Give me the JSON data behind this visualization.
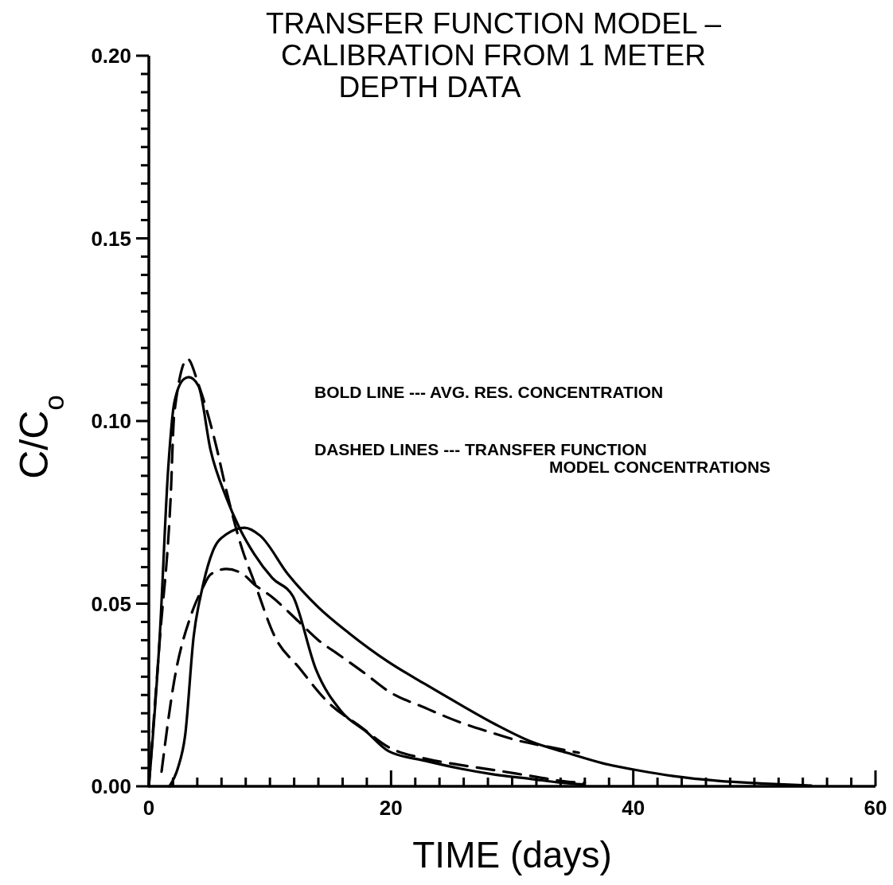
{
  "chart_data": {
    "type": "line",
    "title": "TRANSFER FUNCTION MODEL –\nCALIBRATION FROM 1 METER\nDEPTH DATA",
    "xlabel": "TIME  (days)",
    "ylabel": "C/C$_{o}$",
    "annotations": [
      "BOLD LINE --- AVG. RES. CONCENTRATION",
      "DASHED LINES --- TRANSFER FUNCTION\nMODEL CONCENTRATIONS"
    ],
    "xlim": [
      0,
      60
    ],
    "ylim": [
      0,
      0.2
    ],
    "xticks": [
      0,
      {
        "value": 2,
        "label": null
      },
      {
        "value": 4,
        "label": null
      },
      {
        "value": 6,
        "label": null
      },
      {
        "value": 8,
        "label": null
      },
      {
        "value": 10,
        "label": null
      },
      {
        "value": 12,
        "label": null
      },
      {
        "value": 14,
        "label": null
      },
      {
        "value": 16,
        "label": null
      },
      {
        "value": 18,
        "label": null
      },
      20,
      {
        "value": 22,
        "label": null
      },
      {
        "value": 24,
        "label": null
      },
      {
        "value": 26,
        "label": null
      },
      {
        "value": 28,
        "label": null
      },
      {
        "value": 30,
        "label": null
      },
      {
        "value": 32,
        "label": null
      },
      {
        "value": 34,
        "label": null
      },
      {
        "value": 36,
        "label": null
      },
      {
        "value": 38,
        "label": null
      },
      40,
      {
        "value": 42,
        "label": null
      },
      {
        "value": 44,
        "label": null
      },
      {
        "value": 46,
        "label": null
      },
      {
        "value": 48,
        "label": null
      },
      {
        "value": 50,
        "label": null
      },
      {
        "value": 52,
        "label": null
      },
      {
        "value": 54,
        "label": null
      },
      {
        "value": 56,
        "label": null
      },
      {
        "value": 58,
        "label": null
      },
      60
    ],
    "yticks": [
      {
        "value": 0,
        "label": "0.00"
      },
      {
        "value": 0.005,
        "label": null
      },
      {
        "value": 0.01,
        "label": null
      },
      {
        "value": 0.015,
        "label": null
      },
      {
        "value": 0.02,
        "label": null
      },
      {
        "value": 0.025,
        "label": null
      },
      {
        "value": 0.03,
        "label": null
      },
      {
        "value": 0.035,
        "label": null
      },
      {
        "value": 0.04,
        "label": null
      },
      {
        "value": 0.045,
        "label": null
      },
      {
        "value": 0.05,
        "label": "0.05"
      },
      {
        "value": 0.055,
        "label": null
      },
      {
        "value": 0.06,
        "label": null
      },
      {
        "value": 0.065,
        "label": null
      },
      {
        "value": 0.07,
        "label": null
      },
      {
        "value": 0.075,
        "label": null
      },
      {
        "value": 0.08,
        "label": null
      },
      {
        "value": 0.085,
        "label": null
      },
      {
        "value": 0.09,
        "label": null
      },
      {
        "value": 0.095,
        "label": null
      },
      {
        "value": 0.1,
        "label": "0.10"
      },
      {
        "value": 0.105,
        "label": null
      },
      {
        "value": 0.11,
        "label": null
      },
      {
        "value": 0.115,
        "label": null
      },
      {
        "value": 0.12,
        "label": null
      },
      {
        "value": 0.125,
        "label": null
      },
      {
        "value": 0.13,
        "label": null
      },
      {
        "value": 0.135,
        "label": null
      },
      {
        "value": 0.14,
        "label": null
      },
      {
        "value": 0.145,
        "label": null
      },
      {
        "value": 0.15,
        "label": "0.15"
      },
      {
        "value": 0.155,
        "label": null
      },
      {
        "value": 0.16,
        "label": null
      },
      {
        "value": 0.165,
        "label": null
      },
      {
        "value": 0.17,
        "label": null
      },
      {
        "value": 0.175,
        "label": null
      },
      {
        "value": 0.18,
        "label": null
      },
      {
        "value": 0.185,
        "label": null
      },
      {
        "value": 0.19,
        "label": null
      },
      {
        "value": 0.195,
        "label": null
      },
      {
        "value": 0.2,
        "label": "0.20"
      }
    ],
    "grid": false,
    "marker": "none",
    "series": [
      {
        "color": "#000000",
        "line_style": "solid",
        "x": [
          0,
          0.9,
          1.6,
          2.1,
          2.9,
          3.3,
          4.1,
          5.1,
          6.4,
          7.5,
          8.7,
          10.2,
          11.9,
          13.8,
          15.9,
          18,
          19.8,
          22.8,
          25.8,
          28.6,
          31.6,
          34,
          35.9
        ],
        "values": [
          0,
          0.041,
          0.087,
          0.105,
          0.1115,
          0.112,
          0.1096,
          0.092,
          0.079,
          0.0706,
          0.0636,
          0.057,
          0.052,
          0.032,
          0.0205,
          0.0148,
          0.0096,
          0.007,
          0.0048,
          0.0032,
          0.002,
          0.001,
          0.0005
        ]
      },
      {
        "color": "#000000",
        "line_style": "solid",
        "x": [
          1.7,
          2.4,
          3.0,
          3.7,
          4.4,
          5.3,
          6.4,
          7.9,
          9.2,
          11.5,
          14,
          16.5,
          19.8,
          22.8,
          25.8,
          28.6,
          31.6,
          34.5,
          37.5,
          40.5,
          43.3,
          47,
          50.5,
          54.7
        ],
        "values": [
          0,
          0.005,
          0.014,
          0.041,
          0.054,
          0.0645,
          0.069,
          0.0708,
          0.0686,
          0.058,
          0.049,
          0.042,
          0.034,
          0.028,
          0.0222,
          0.017,
          0.0122,
          0.0092,
          0.0063,
          0.0043,
          0.0028,
          0.0015,
          0.0008,
          0.0002
        ]
      },
      {
        "color": "#000000",
        "line_style": "dashed",
        "x": [
          0,
          0.9,
          1.8,
          2.1,
          3.2,
          4.1,
          5.5,
          6.4,
          7.7,
          8.7,
          10.4,
          12.4,
          14.8,
          17.5,
          19.8,
          22.8,
          25.8,
          28.6,
          31.6,
          34.5,
          36
        ],
        "values": [
          0,
          0.04,
          0.079,
          0.102,
          0.117,
          0.11,
          0.094,
          0.081,
          0.065,
          0.056,
          0.041,
          0.0325,
          0.023,
          0.0163,
          0.0107,
          0.0076,
          0.0058,
          0.0044,
          0.0028,
          0.0013,
          0.001
        ]
      },
      {
        "color": "#000000",
        "line_style": "dashed",
        "x": [
          1.05,
          2.1,
          3.5,
          4.4,
          5.1,
          6.4,
          7.8,
          8.7,
          10.1,
          12.4,
          14,
          15.7,
          17.8,
          19.8,
          22.8,
          25.8,
          28,
          30.4,
          33,
          35.5
        ],
        "values": [
          0.004,
          0.029,
          0.047,
          0.054,
          0.058,
          0.0595,
          0.058,
          0.0553,
          0.052,
          0.045,
          0.04,
          0.036,
          0.031,
          0.026,
          0.0215,
          0.0174,
          0.015,
          0.0126,
          0.0108,
          0.0092
        ]
      }
    ]
  }
}
